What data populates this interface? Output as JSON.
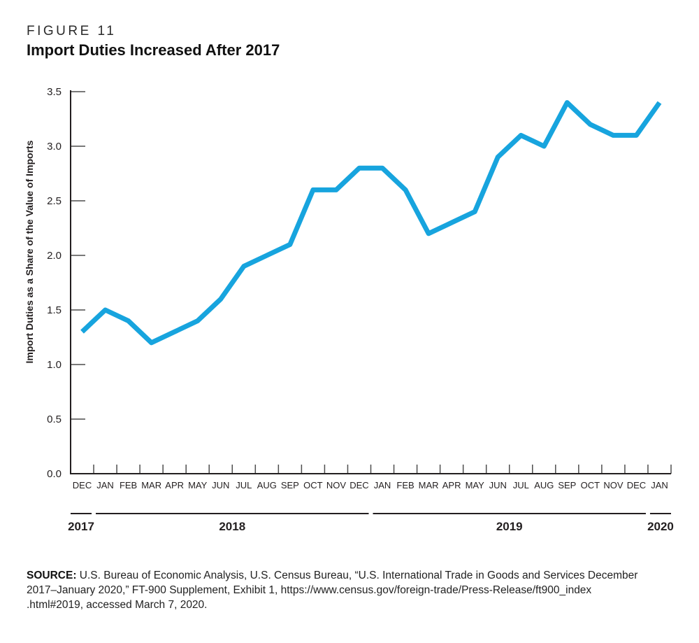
{
  "figure": {
    "label": "FIGURE 11",
    "title": "Import Duties Increased After 2017"
  },
  "source": {
    "label": "SOURCE:",
    "line1": "U.S. Bureau of Economic Analysis, U.S. Census Bureau, “U.S. International Trade in Goods and Services December",
    "line2": "2017–January 2020,” FT-900 Supplement, Exhibit 1, https://www.census.gov/foreign-trade/Press-Release/ft900_index",
    "line3": ".html#2019, accessed March 7, 2020."
  },
  "chart_data": {
    "type": "line",
    "title": "Import Duties Increased After 2017",
    "xlabel": "",
    "ylabel": "Import Duties as a Share of the Value of Imports",
    "ylim": [
      0,
      3.5
    ],
    "yticks": [
      "0.0",
      "0.5",
      "1.0",
      "1.5",
      "2.0",
      "2.5",
      "3.0",
      "3.5"
    ],
    "grid": false,
    "legend": false,
    "line_color": "#17A4DE",
    "axis_color": "#231f20",
    "tick_color": "#4d4d4d",
    "categories": [
      "DEC",
      "JAN",
      "FEB",
      "MAR",
      "APR",
      "MAY",
      "JUN",
      "JUL",
      "AUG",
      "SEP",
      "OCT",
      "NOV",
      "DEC",
      "JAN",
      "FEB",
      "MAR",
      "APR",
      "MAY",
      "JUN",
      "JUL",
      "AUG",
      "SEP",
      "OCT",
      "NOV",
      "DEC",
      "JAN"
    ],
    "values": [
      1.3,
      1.5,
      1.4,
      1.2,
      1.3,
      1.4,
      1.6,
      1.9,
      2.0,
      2.1,
      2.6,
      2.6,
      2.8,
      2.8,
      2.6,
      2.2,
      2.3,
      2.4,
      2.9,
      3.1,
      3.0,
      3.4,
      3.2,
      3.1,
      3.1,
      3.4
    ],
    "years": [
      {
        "label": "2017",
        "from": 0,
        "to": 0
      },
      {
        "label": "2018",
        "from": 1,
        "to": 12
      },
      {
        "label": "2019",
        "from": 13,
        "to": 24
      },
      {
        "label": "2020",
        "from": 25,
        "to": 25
      }
    ]
  }
}
